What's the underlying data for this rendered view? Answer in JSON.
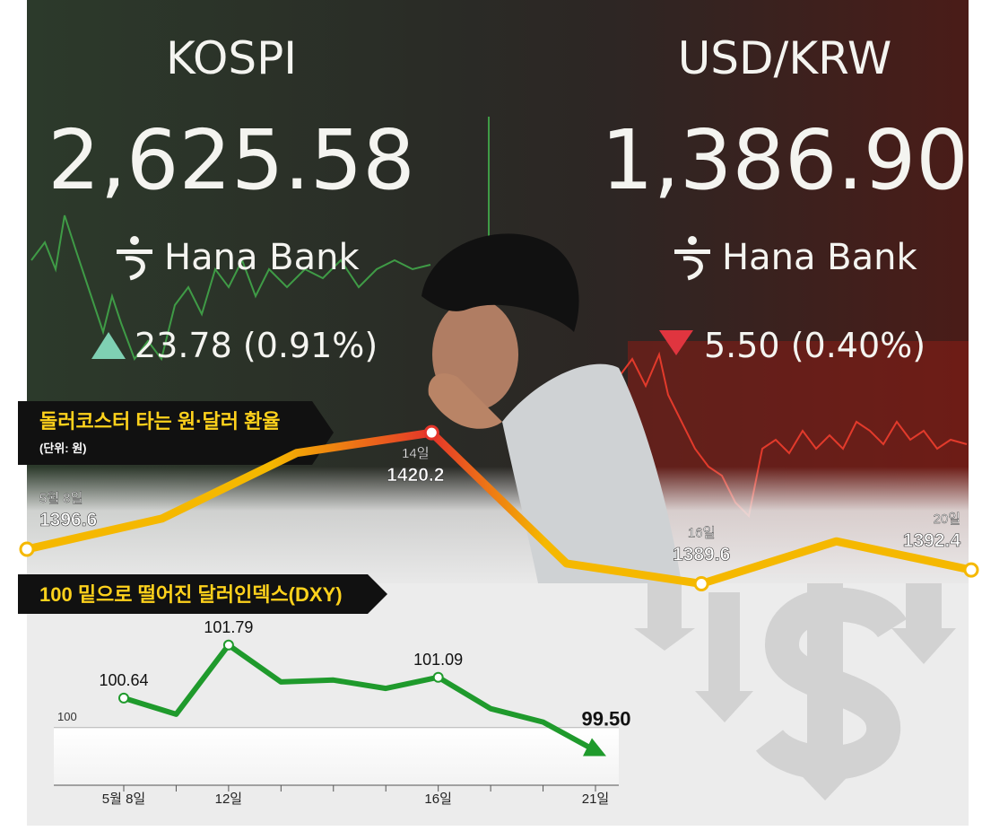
{
  "screen": {
    "left": {
      "name": "KOSPI",
      "value": "2,625.58",
      "brand": "Hana Bank",
      "change": "23.78 (0.91%)"
    },
    "right": {
      "name": "USD/KRW",
      "value": "1,386.90",
      "brand": "Hana Bank",
      "change": "5.50 (0.40%)"
    }
  },
  "chart_data": [
    {
      "type": "line",
      "title": "돌러코스터 타는 원·달러 환율",
      "subtitle": "(단위: 원)",
      "categories": [
        "5월 8일",
        null,
        null,
        "14일",
        null,
        "16일",
        null,
        "20일"
      ],
      "values": [
        1396.6,
        1402.8,
        1416.1,
        1420.2,
        1393.7,
        1389.6,
        1398.2,
        1392.4
      ],
      "color": "#f5b800",
      "highlight_color": "#e5352a",
      "ylim": [
        1380.6,
        1431.5
      ]
    },
    {
      "type": "line",
      "title": "100 밑으로 떨어진 달러인덱스(DXY)",
      "categories": [
        "5월 8일",
        null,
        "12일",
        null,
        null,
        null,
        "16일",
        null,
        null,
        "21일"
      ],
      "values": [
        100.64,
        100.29,
        101.79,
        100.99,
        101.03,
        100.85,
        101.09,
        100.41,
        100.12,
        99.5
      ],
      "value_labels": [
        "100.64",
        null,
        "101.79",
        null,
        null,
        null,
        "101.09",
        null,
        null,
        "99.50"
      ],
      "color": "#1f9a2c",
      "ylim": [
        98.75,
        102.35
      ],
      "yticks": [
        100
      ],
      "grid": true
    }
  ]
}
